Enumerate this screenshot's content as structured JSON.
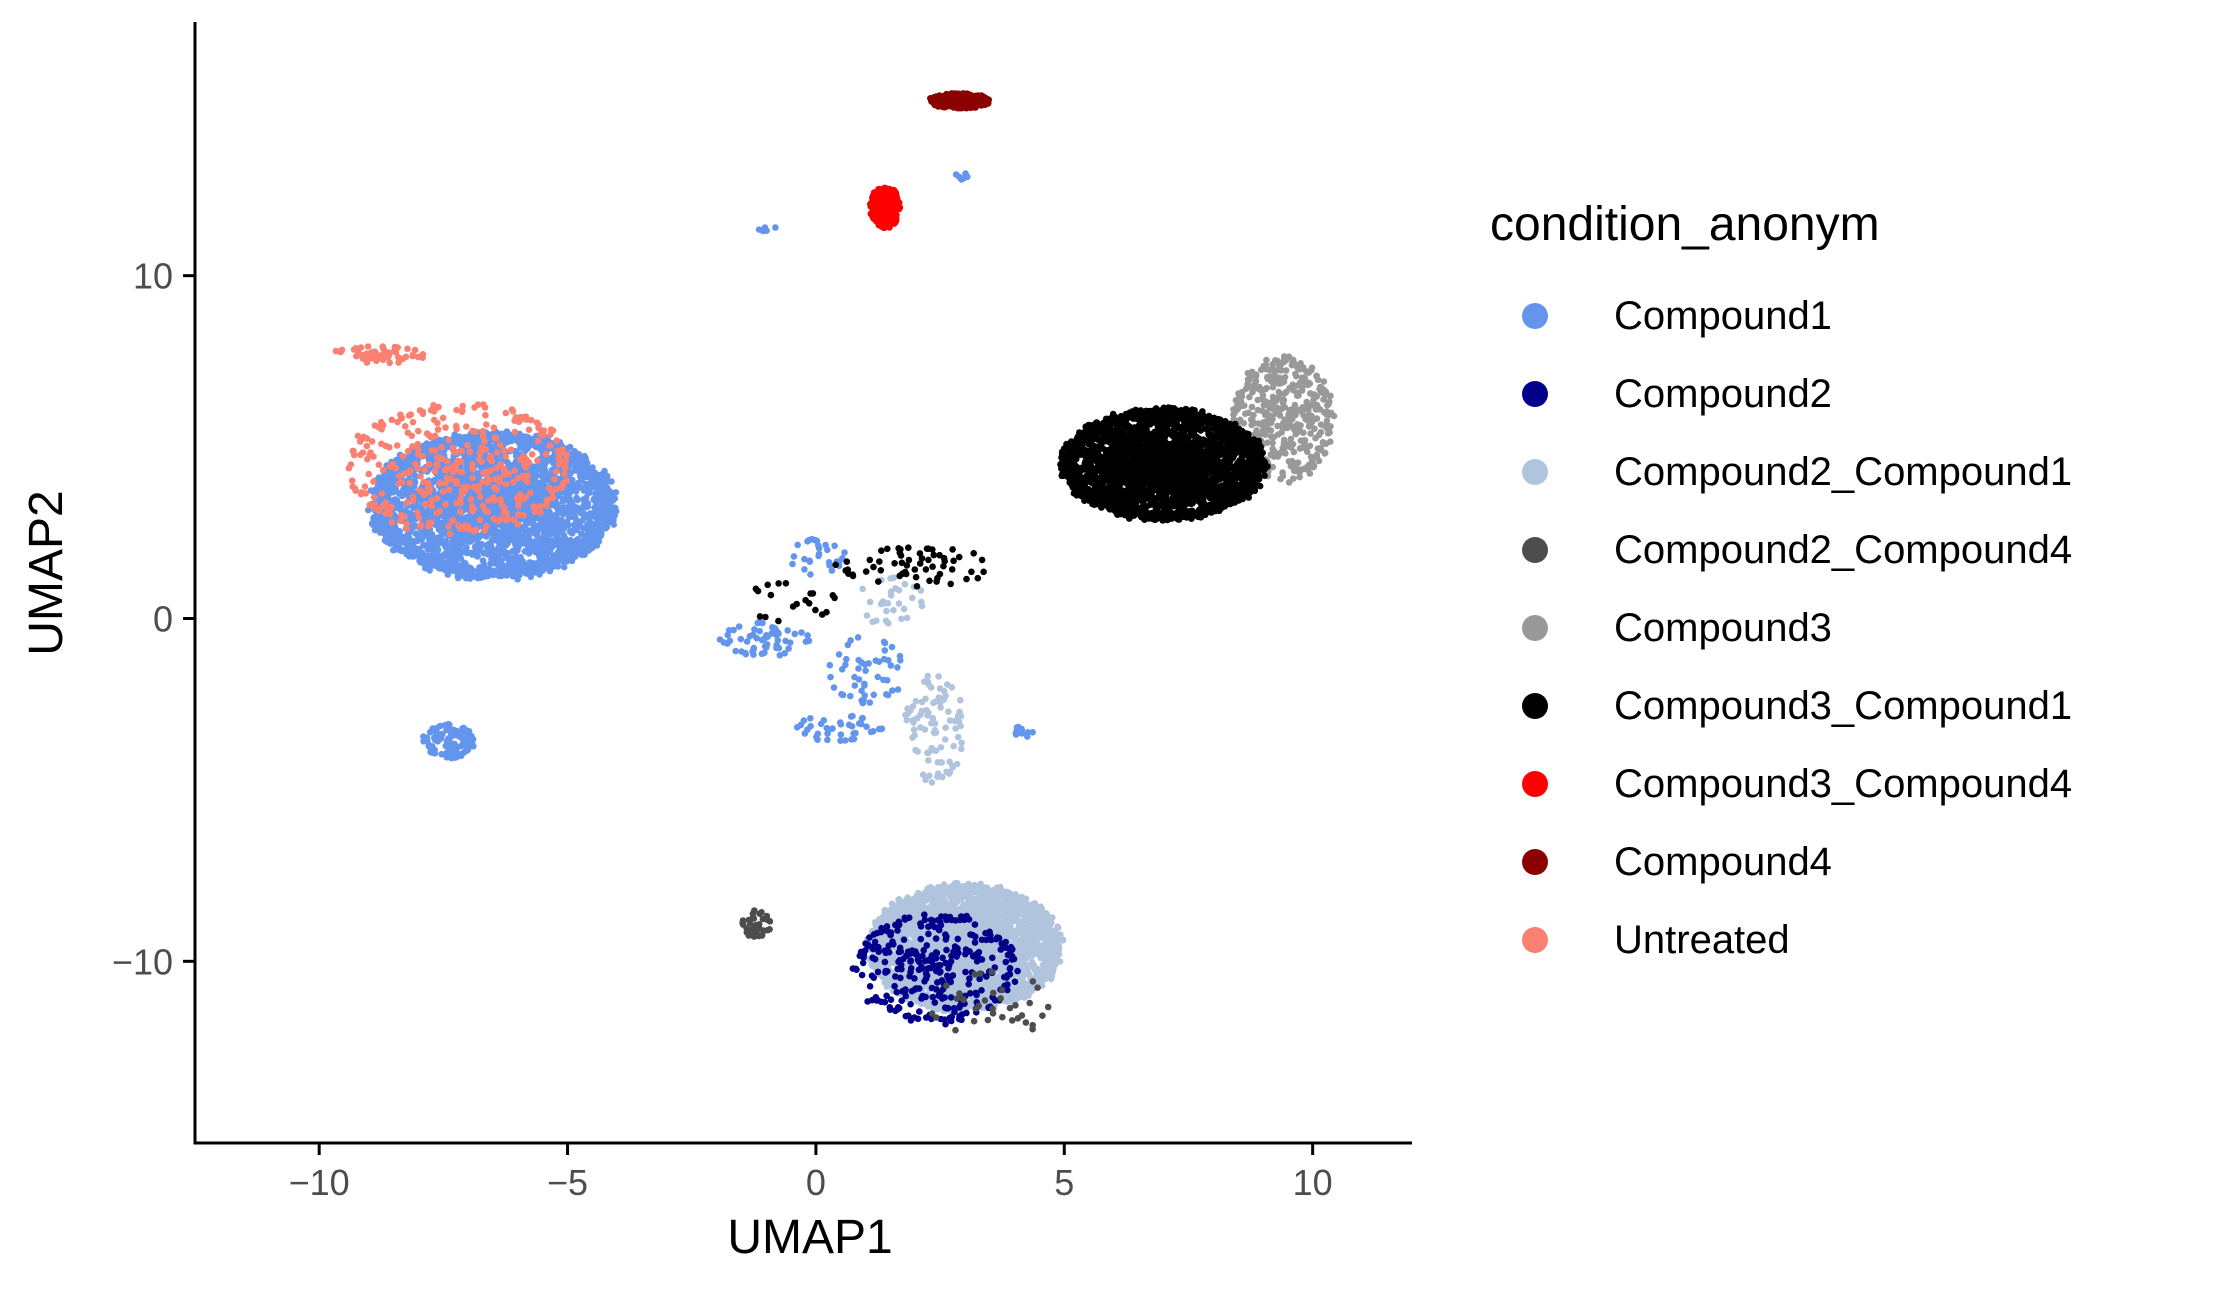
{
  "chart_data": {
    "type": "scatter",
    "title": "",
    "xlabel": "UMAP1",
    "ylabel": "UMAP2",
    "xlim": [
      -12.5,
      12
    ],
    "ylim": [
      -15.3,
      17.4
    ],
    "xticks": [
      -10,
      -5,
      0,
      5,
      10
    ],
    "yticks": [
      -10,
      0,
      10
    ],
    "xtick_labels": [
      "−10",
      "−5",
      "0",
      "5",
      "10"
    ],
    "ytick_labels": [
      "−10",
      "0",
      "10"
    ],
    "grid": false,
    "legend_position": "right",
    "legend_title": "condition_anonym",
    "series": [
      {
        "name": "Compound1",
        "color": "#6495ED",
        "clusters": [
          {
            "center": [
              -6.5,
              3.3
            ],
            "spread": [
              2.4,
              2.1
            ],
            "count": 3400
          },
          {
            "center": [
              -7.4,
              -3.6
            ],
            "spread": [
              0.5,
              0.5
            ],
            "count": 110
          },
          {
            "center": [
              0.0,
              1.8
            ],
            "spread": [
              0.6,
              0.5
            ],
            "count": 30
          },
          {
            "center": [
              -1.0,
              -0.6
            ],
            "spread": [
              0.9,
              0.5
            ],
            "count": 60
          },
          {
            "center": [
              1.0,
              -1.5
            ],
            "spread": [
              0.8,
              1.0
            ],
            "count": 50
          },
          {
            "center": [
              0.5,
              -3.2
            ],
            "spread": [
              0.9,
              0.4
            ],
            "count": 40
          },
          {
            "center": [
              4.2,
              -3.3
            ],
            "spread": [
              0.2,
              0.2
            ],
            "count": 12
          },
          {
            "center": [
              -1.0,
              11.4
            ],
            "spread": [
              0.2,
              0.1
            ],
            "count": 6
          },
          {
            "center": [
              3.0,
              12.9
            ],
            "spread": [
              0.2,
              0.1
            ],
            "count": 6
          }
        ]
      },
      {
        "name": "Compound2",
        "color": "#00008B",
        "clusters": [
          {
            "center": [
              2.4,
              -10.2
            ],
            "spread": [
              1.6,
              1.6
            ],
            "count": 320
          }
        ]
      },
      {
        "name": "Compound2_Compound1",
        "color": "#B0C4DE",
        "clusters": [
          {
            "center": [
              3.0,
              -9.6
            ],
            "spread": [
              1.9,
              1.8
            ],
            "count": 3200
          },
          {
            "center": [
              2.4,
              -3.2
            ],
            "spread": [
              0.6,
              1.6
            ],
            "count": 90
          },
          {
            "center": [
              1.5,
              0.5
            ],
            "spread": [
              0.7,
              0.7
            ],
            "count": 30
          }
        ]
      },
      {
        "name": "Compound2_Compound4",
        "color": "#4D4D4D",
        "clusters": [
          {
            "center": [
              -1.2,
              -8.9
            ],
            "spread": [
              0.3,
              0.4
            ],
            "count": 40
          },
          {
            "center": [
              3.5,
              -11.3
            ],
            "spread": [
              1.2,
              1.0
            ],
            "count": 35
          }
        ]
      },
      {
        "name": "Compound3",
        "color": "#999999",
        "clusters": [
          {
            "center": [
              9.4,
              5.8
            ],
            "spread": [
              1.0,
              1.8
            ],
            "count": 420
          }
        ]
      },
      {
        "name": "Compound3_Compound1",
        "color": "#000000",
        "clusters": [
          {
            "center": [
              7.0,
              4.5
            ],
            "spread": [
              2.0,
              1.6
            ],
            "count": 3000
          },
          {
            "center": [
              2.0,
              1.5
            ],
            "spread": [
              1.6,
              0.6
            ],
            "count": 60
          },
          {
            "center": [
              -0.5,
              0.5
            ],
            "spread": [
              0.9,
              0.6
            ],
            "count": 20
          }
        ]
      },
      {
        "name": "Compound3_Compound4",
        "color": "#FF0000",
        "clusters": [
          {
            "center": [
              1.4,
              12.0
            ],
            "spread": [
              0.3,
              0.6
            ],
            "count": 220
          }
        ]
      },
      {
        "name": "Compound4",
        "color": "#8B0000",
        "clusters": [
          {
            "center": [
              2.9,
              15.1
            ],
            "spread": [
              0.6,
              0.22
            ],
            "count": 260
          }
        ]
      },
      {
        "name": "Untreated",
        "color": "#FA8072",
        "clusters": [
          {
            "center": [
              -7.2,
              4.4
            ],
            "spread": [
              2.2,
              1.9
            ],
            "count": 380
          },
          {
            "center": [
              -8.8,
              7.7
            ],
            "spread": [
              0.9,
              0.25
            ],
            "count": 60
          }
        ]
      }
    ]
  }
}
